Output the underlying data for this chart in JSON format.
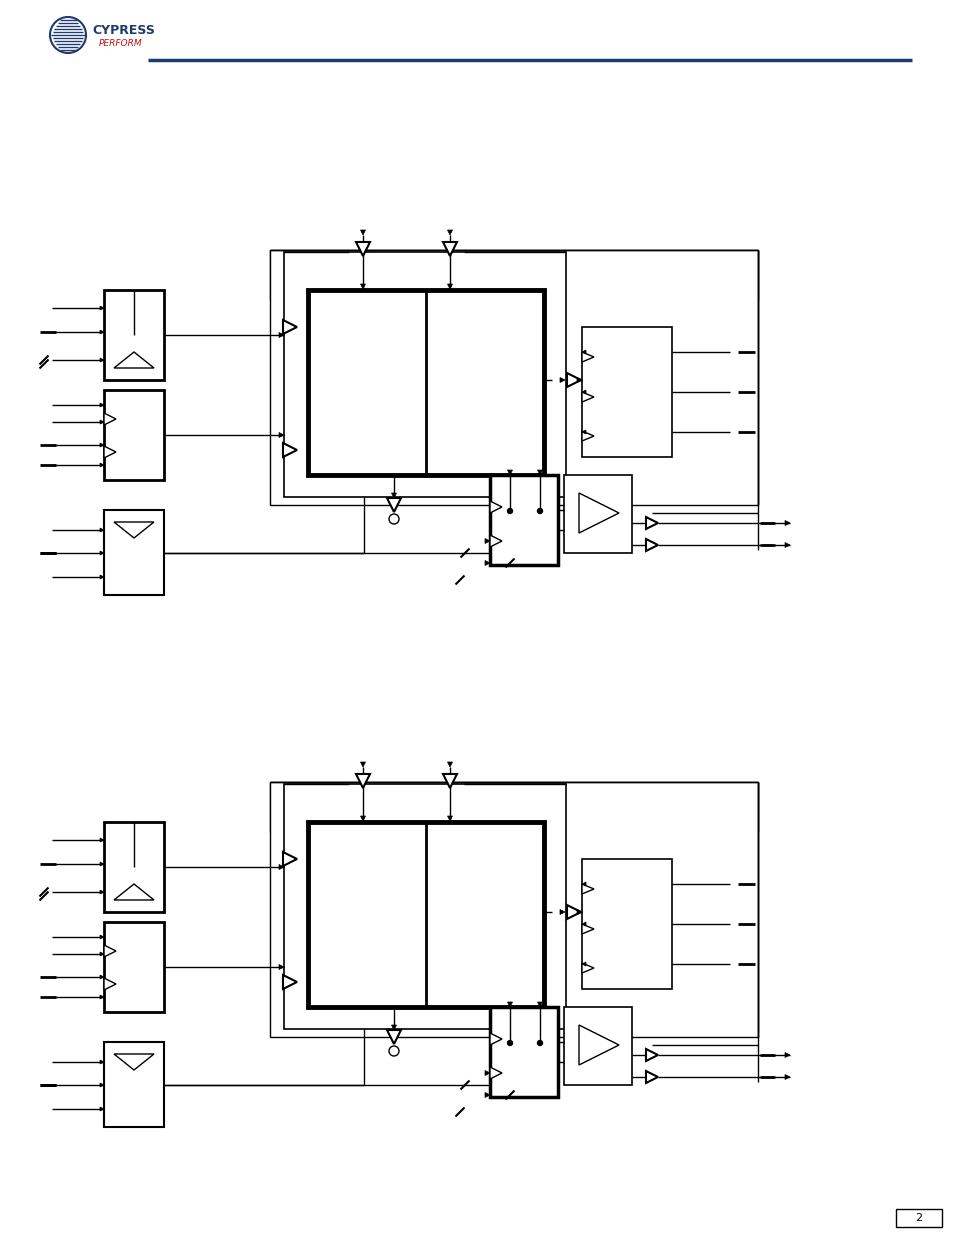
{
  "bg_color": "#ffffff",
  "line_color": "#000000",
  "header_line_color": "#1f3a6e",
  "page_number": "2",
  "diagram_bg": "#ffffff"
}
